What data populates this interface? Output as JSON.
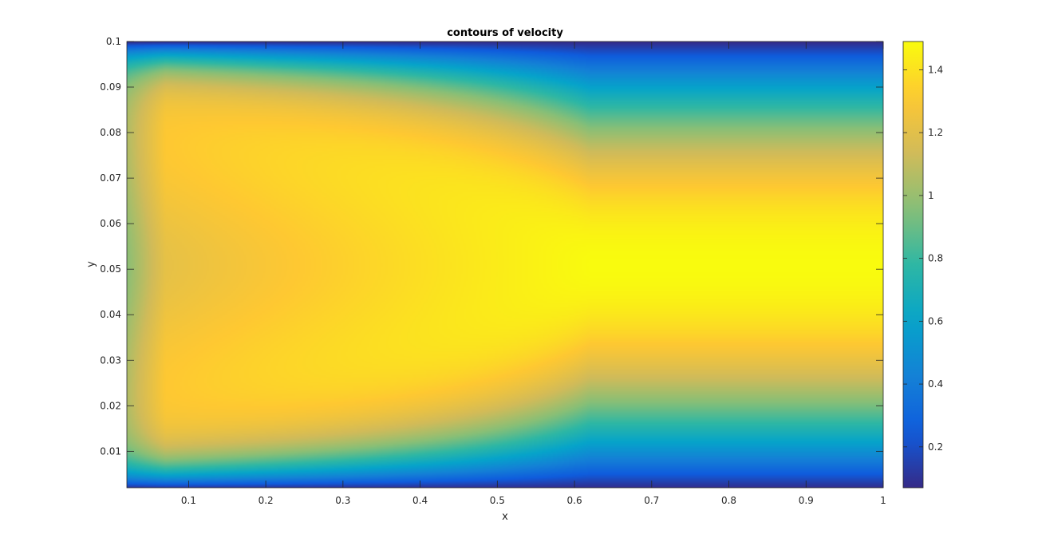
{
  "chart_data": {
    "type": "heatmap",
    "title": "contours of velocity",
    "xlabel": "x",
    "ylabel": "y",
    "xlim": [
      0.02,
      1.0
    ],
    "ylim": [
      0.002,
      0.1
    ],
    "xticks": [
      0.1,
      0.2,
      0.3,
      0.4,
      0.5,
      0.6,
      0.7,
      0.8,
      0.9,
      1.0
    ],
    "xtick_labels": [
      "0.1",
      "0.2",
      "0.3",
      "0.4",
      "0.5",
      "0.6",
      "0.7",
      "0.8",
      "0.9",
      "1"
    ],
    "yticks": [
      0.01,
      0.02,
      0.03,
      0.04,
      0.05,
      0.06,
      0.07,
      0.08,
      0.09,
      0.1
    ],
    "ytick_labels": [
      "0.01",
      "0.02",
      "0.03",
      "0.04",
      "0.05",
      "0.06",
      "0.07",
      "0.08",
      "0.09",
      "0.1"
    ],
    "colorbar": {
      "limits": [
        0.07,
        1.49
      ],
      "ticks": [
        0.2,
        0.4,
        0.6,
        0.8,
        1.0,
        1.2,
        1.4
      ],
      "tick_labels": [
        "0.2",
        "0.4",
        "0.6",
        "0.8",
        "1",
        "1.2",
        "1.4"
      ],
      "colormap": "parula"
    },
    "field": {
      "description_values": "velocity magnitude over (x, y)",
      "centerline_y": 0.05,
      "centerline_max_value": 1.49,
      "inlet_overshoot_value": 1.3,
      "wall_value": 0.07
    },
    "grid": false,
    "legend": "colorbar-right"
  },
  "colors": {
    "parula": [
      "#352a87",
      "#0f5cdd",
      "#1481d6",
      "#06a4ca",
      "#2eb7a4",
      "#87bf77",
      "#d1bb59",
      "#fec832",
      "#f9fb0e"
    ]
  }
}
